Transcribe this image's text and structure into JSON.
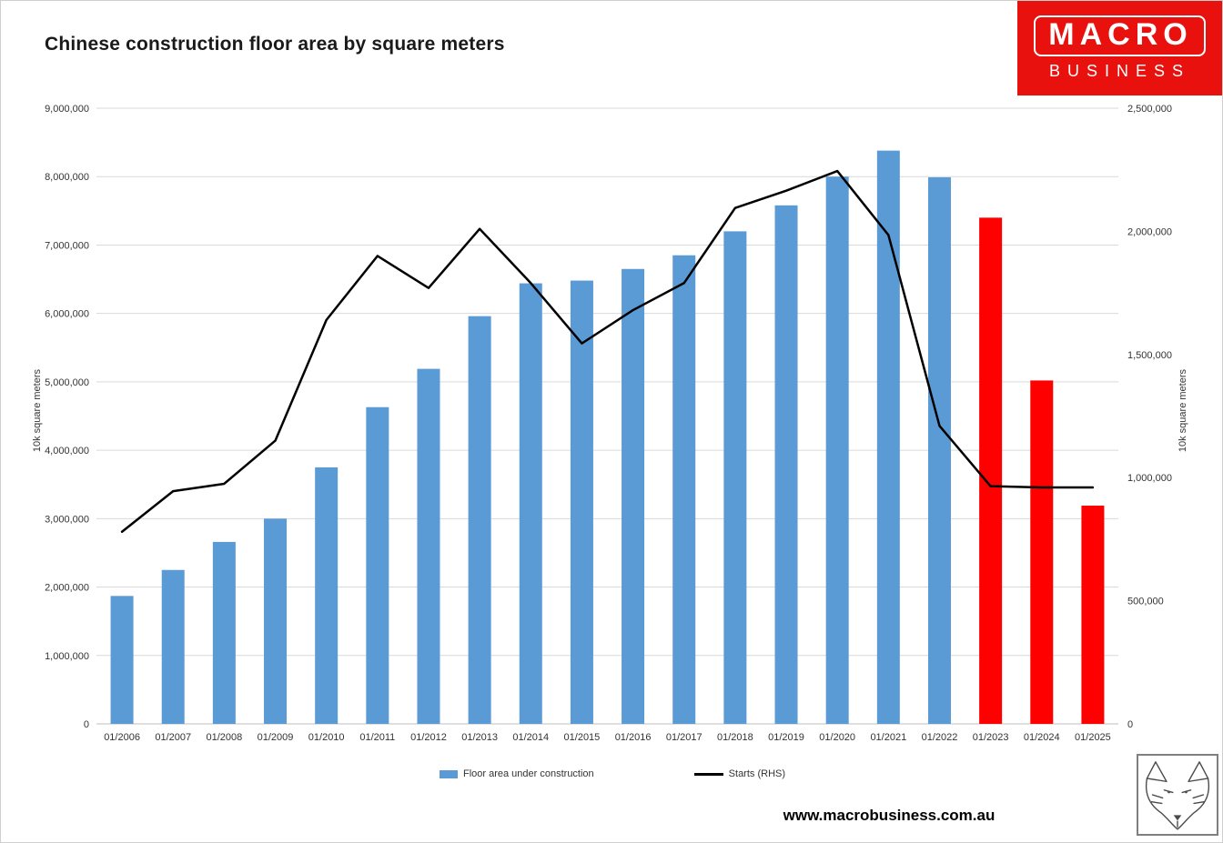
{
  "header": {
    "title": "Chinese construction floor area by square meters"
  },
  "logo": {
    "top": "MACRO",
    "bottom": "BUSINESS",
    "background": "#e8110d",
    "text_color": "#ffffff"
  },
  "footer": {
    "url": "www.macrobusiness.com.au"
  },
  "colors": {
    "bar_blue": "#5b9bd5",
    "bar_red": "#ff0000",
    "line_black": "#000000",
    "gridline": "#d9d9d9"
  },
  "chart_data": {
    "type": "bar",
    "title": "Chinese construction floor area by square meters",
    "categories": [
      "01/2006",
      "01/2007",
      "01/2008",
      "01/2009",
      "01/2010",
      "01/2011",
      "01/2012",
      "01/2013",
      "01/2014",
      "01/2015",
      "01/2016",
      "01/2017",
      "01/2018",
      "01/2019",
      "01/2020",
      "01/2021",
      "01/2022",
      "01/2023",
      "01/2024",
      "01/2025"
    ],
    "series": [
      {
        "name": "Floor area under construction",
        "type": "bar",
        "axis": "left",
        "values": [
          1870000,
          2250000,
          2660000,
          3000000,
          3750000,
          4630000,
          5190000,
          5960000,
          6440000,
          6480000,
          6650000,
          6850000,
          7200000,
          7580000,
          8000000,
          8380000,
          7990000,
          7400000,
          5020000,
          3190000
        ],
        "colors": [
          "#5b9bd5",
          "#5b9bd5",
          "#5b9bd5",
          "#5b9bd5",
          "#5b9bd5",
          "#5b9bd5",
          "#5b9bd5",
          "#5b9bd5",
          "#5b9bd5",
          "#5b9bd5",
          "#5b9bd5",
          "#5b9bd5",
          "#5b9bd5",
          "#5b9bd5",
          "#5b9bd5",
          "#5b9bd5",
          "#5b9bd5",
          "#ff0000",
          "#ff0000",
          "#ff0000"
        ]
      },
      {
        "name": "Starts (RHS)",
        "type": "line",
        "axis": "right",
        "color": "#000000",
        "values": [
          780000,
          945000,
          975000,
          1150000,
          1640000,
          1900000,
          1770000,
          2010000,
          1790000,
          1545000,
          1680000,
          1790000,
          2095000,
          2165000,
          2245000,
          1985000,
          1210000,
          965000,
          960000,
          960000
        ]
      }
    ],
    "left_axis": {
      "label": "10k square meters",
      "min": 0,
      "max": 9000000,
      "tick_step": 1000000
    },
    "right_axis": {
      "label": "10k square meters",
      "min": 0,
      "max": 2500000,
      "tick_step": 500000
    },
    "grid": true,
    "legend_position": "bottom"
  }
}
